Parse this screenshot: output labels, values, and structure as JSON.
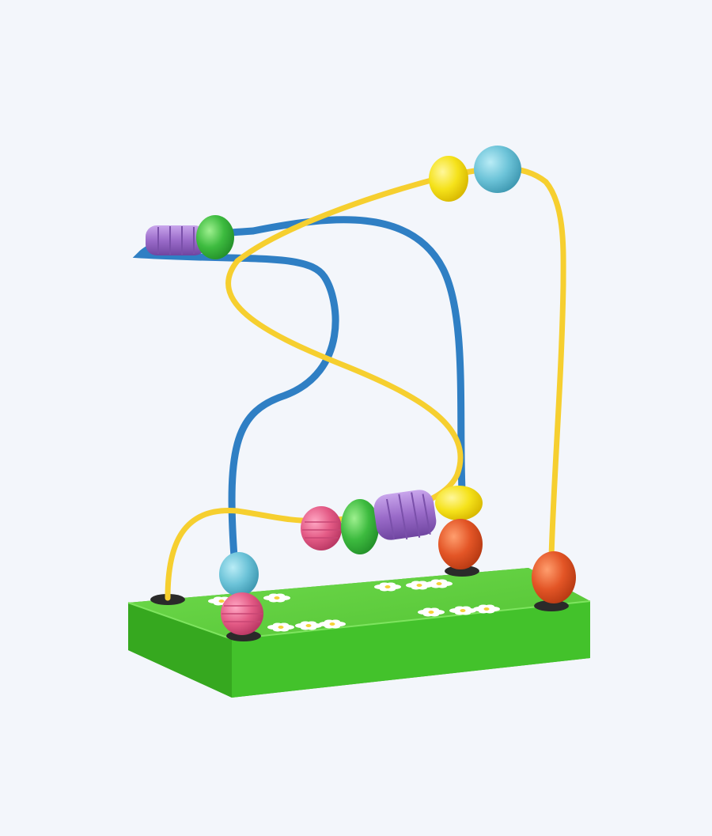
{
  "scene": {
    "subject": "bead-maze-toy",
    "colors": {
      "background": "#f3f6fb",
      "base_top": "#5fcf3e",
      "base_front": "#43c22b",
      "base_side": "#35a81f",
      "flower": "#ffffff",
      "flower_center": "#f5d23a",
      "wire_yellow": "#f6cf2f",
      "wire_blue": "#2f7fc4",
      "bead_purple": "#9a6bc9",
      "bead_green": "#3dbb3f",
      "bead_yellow": "#f5e21a",
      "bead_lightblue": "#6cc3d8",
      "bead_pink": "#e45b86",
      "bead_orange": "#e35526",
      "peg": "#2a2a2a"
    }
  }
}
